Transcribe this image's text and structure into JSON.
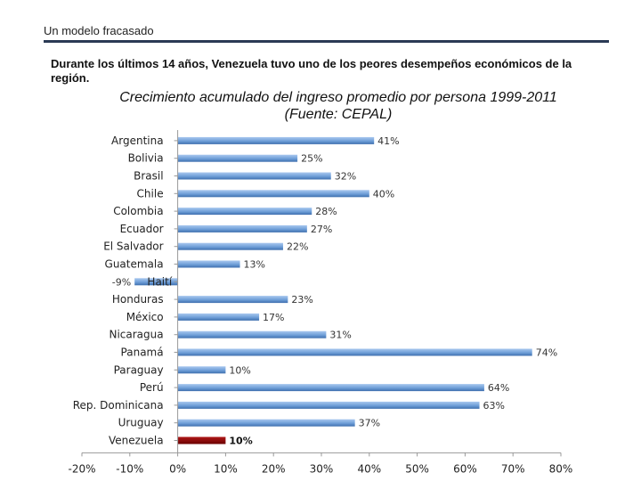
{
  "header": {
    "title": "Un modelo fracasado"
  },
  "description": "Durante los últimos 14 años, Venezuela tuvo uno de los peores desempeños económicos de la región.",
  "chart_data": {
    "type": "bar",
    "orientation": "horizontal",
    "title": "Crecimiento acumulado del ingreso promedio por persona 1999-2011",
    "subtitle": "(Fuente: CEPAL)",
    "categories": [
      "Argentina",
      "Bolivia",
      "Brasil",
      "Chile",
      "Colombia",
      "Ecuador",
      "El Salvador",
      "Guatemala",
      "Haití",
      "Honduras",
      "México",
      "Nicaragua",
      "Panamá",
      "Paraguay",
      "Perú",
      "Rep. Dominicana",
      "Uruguay",
      "Venezuela"
    ],
    "values": [
      41,
      25,
      32,
      40,
      28,
      27,
      22,
      13,
      -9,
      23,
      17,
      31,
      74,
      10,
      64,
      63,
      37,
      10
    ],
    "value_labels": [
      "41%",
      "25%",
      "32%",
      "40%",
      "28%",
      "27%",
      "22%",
      "13%",
      "-9%",
      "23%",
      "17%",
      "31%",
      "74%",
      "10%",
      "64%",
      "63%",
      "37%",
      "10%"
    ],
    "highlight": "Venezuela",
    "xlim": [
      -20,
      80
    ],
    "x_ticks": [
      -20,
      -10,
      0,
      10,
      20,
      30,
      40,
      50,
      60,
      70,
      80
    ],
    "x_tick_labels": [
      "-20%",
      "-10%",
      "0%",
      "10%",
      "20%",
      "30%",
      "40%",
      "50%",
      "60%",
      "70%",
      "80%"
    ],
    "colors": {
      "bar": "#6f9fd8",
      "bar_dark": "#3e6fae",
      "highlight": "#8b0000",
      "axis": "#999999"
    }
  }
}
